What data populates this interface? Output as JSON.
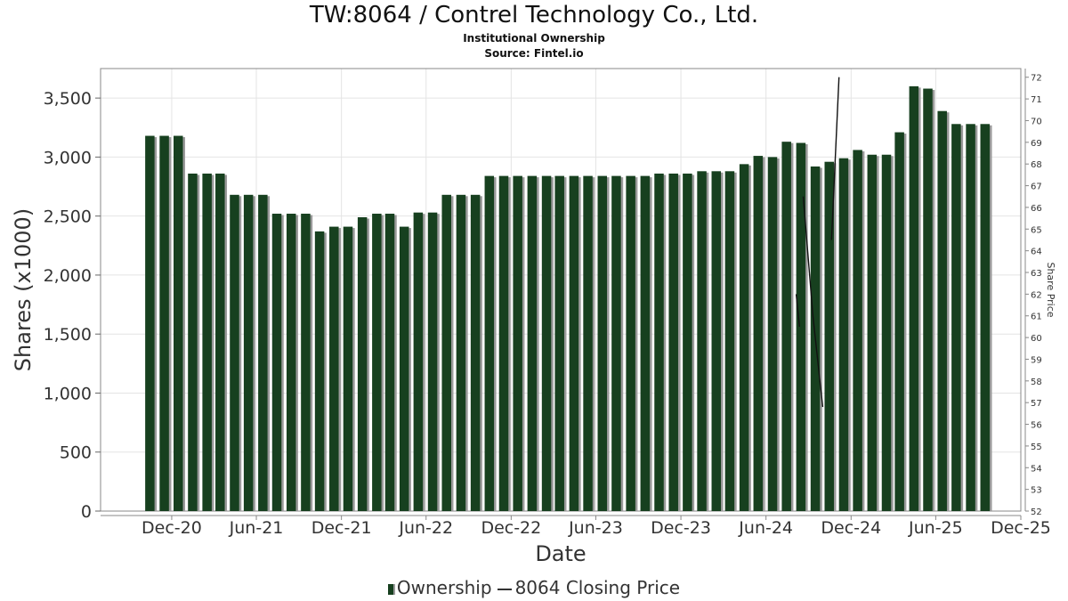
{
  "header": {
    "title": "TW:8064 / Contrel Technology Co., Ltd.",
    "subtitle": "Institutional Ownership",
    "source": "Source: Fintel.io"
  },
  "legend": {
    "ownership": "Ownership",
    "price": "8064 Closing Price"
  },
  "colors": {
    "bar": "#17401f",
    "bar_shadow": "#9a9a9a",
    "price_line": "#111111",
    "grid": "#e4e4e4"
  },
  "chart_data": {
    "type": "bar",
    "xlabel": "Date",
    "ylabel": "Shares (x1000)",
    "y2label": "Share Price",
    "ylim": [
      0,
      3750
    ],
    "y_ticks": [
      0,
      500,
      1000,
      1500,
      2000,
      2500,
      3000,
      3500
    ],
    "y_tick_labels": [
      "0",
      "500",
      "1,000",
      "1,500",
      "2,000",
      "2,500",
      "3,000",
      "3,500"
    ],
    "y2lim": [
      52,
      72.4
    ],
    "y2_ticks": [
      52,
      53,
      54,
      55,
      56,
      57,
      58,
      59,
      60,
      61,
      62,
      63,
      64,
      65,
      66,
      67,
      68,
      69,
      70,
      71,
      72
    ],
    "x_range": [
      "2020-07-01",
      "2025-12-01"
    ],
    "x_ticks": [
      {
        "date": "2020-12-01",
        "label": "Dec-20"
      },
      {
        "date": "2021-06-01",
        "label": "Jun-21"
      },
      {
        "date": "2021-12-01",
        "label": "Dec-21"
      },
      {
        "date": "2022-06-01",
        "label": "Jun-22"
      },
      {
        "date": "2022-12-01",
        "label": "Dec-22"
      },
      {
        "date": "2023-06-01",
        "label": "Jun-23"
      },
      {
        "date": "2023-12-01",
        "label": "Dec-23"
      },
      {
        "date": "2024-06-01",
        "label": "Jun-24"
      },
      {
        "date": "2024-12-01",
        "label": "Dec-24"
      },
      {
        "date": "2025-06-01",
        "label": "Jun-25"
      },
      {
        "date": "2025-12-01",
        "label": "Dec-25"
      }
    ],
    "series": [
      {
        "name": "Ownership",
        "points": [
          [
            "2020-10-15",
            3180
          ],
          [
            "2020-11-15",
            3180
          ],
          [
            "2020-12-15",
            3180
          ],
          [
            "2021-01-15",
            2860
          ],
          [
            "2021-02-15",
            2860
          ],
          [
            "2021-03-15",
            2860
          ],
          [
            "2021-04-15",
            2680
          ],
          [
            "2021-05-15",
            2680
          ],
          [
            "2021-06-15",
            2680
          ],
          [
            "2021-07-15",
            2520
          ],
          [
            "2021-08-15",
            2520
          ],
          [
            "2021-09-15",
            2520
          ],
          [
            "2021-10-15",
            2370
          ],
          [
            "2021-11-15",
            2410
          ],
          [
            "2021-12-15",
            2410
          ],
          [
            "2022-01-15",
            2490
          ],
          [
            "2022-02-15",
            2520
          ],
          [
            "2022-03-15",
            2520
          ],
          [
            "2022-04-15",
            2410
          ],
          [
            "2022-05-15",
            2530
          ],
          [
            "2022-06-15",
            2530
          ],
          [
            "2022-07-15",
            2680
          ],
          [
            "2022-08-15",
            2680
          ],
          [
            "2022-09-15",
            2680
          ],
          [
            "2022-10-15",
            2840
          ],
          [
            "2022-11-15",
            2840
          ],
          [
            "2022-12-15",
            2840
          ],
          [
            "2023-01-15",
            2840
          ],
          [
            "2023-02-15",
            2840
          ],
          [
            "2023-03-15",
            2840
          ],
          [
            "2023-04-15",
            2840
          ],
          [
            "2023-05-15",
            2840
          ],
          [
            "2023-06-15",
            2840
          ],
          [
            "2023-07-15",
            2840
          ],
          [
            "2023-08-15",
            2840
          ],
          [
            "2023-09-15",
            2840
          ],
          [
            "2023-10-15",
            2860
          ],
          [
            "2023-11-15",
            2860
          ],
          [
            "2023-12-15",
            2860
          ],
          [
            "2024-01-15",
            2880
          ],
          [
            "2024-02-15",
            2880
          ],
          [
            "2024-03-15",
            2880
          ],
          [
            "2024-04-15",
            2940
          ],
          [
            "2024-05-15",
            3010
          ],
          [
            "2024-06-15",
            3000
          ],
          [
            "2024-07-15",
            3130
          ],
          [
            "2024-08-15",
            3120
          ],
          [
            "2024-09-15",
            2920
          ],
          [
            "2024-10-15",
            2960
          ],
          [
            "2024-11-15",
            2990
          ],
          [
            "2024-12-15",
            3060
          ],
          [
            "2025-01-15",
            3020
          ],
          [
            "2025-02-15",
            3020
          ],
          [
            "2025-03-15",
            3210
          ],
          [
            "2025-04-15",
            3600
          ],
          [
            "2025-05-15",
            3580
          ],
          [
            "2025-06-15",
            3390
          ],
          [
            "2025-07-15",
            3280
          ],
          [
            "2025-08-15",
            3280
          ],
          [
            "2025-09-15",
            3280
          ]
        ]
      },
      {
        "name": "8064 Closing Price",
        "segments": [
          [
            [
              "2024-08-05",
              62.0
            ],
            [
              "2024-08-12",
              60.5
            ]
          ],
          [
            [
              "2024-08-20",
              66.5
            ],
            [
              "2024-09-10",
              61.0
            ],
            [
              "2024-10-01",
              56.8
            ]
          ],
          [
            [
              "2024-10-20",
              64.5
            ],
            [
              "2024-11-05",
              72.0
            ]
          ]
        ]
      }
    ]
  }
}
